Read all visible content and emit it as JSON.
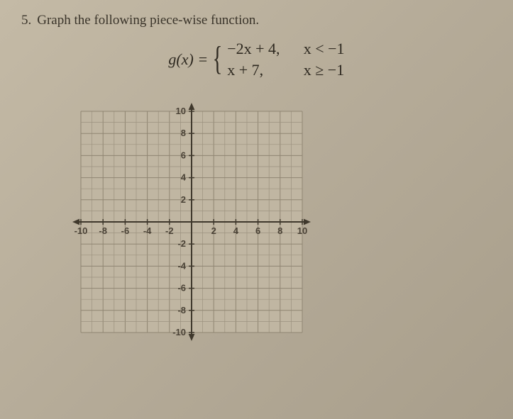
{
  "problem": {
    "number": "5.",
    "text": "Graph the following piece-wise function."
  },
  "equation": {
    "lhs": "g(x) =",
    "pieces": [
      {
        "expr": "−2x + 4,",
        "cond": "x < −1"
      },
      {
        "expr": "x + 7,",
        "cond": "x ≥ −1"
      }
    ]
  },
  "graph": {
    "xlim": [
      -10,
      10
    ],
    "ylim": [
      -10,
      10
    ],
    "tick_step": 2,
    "x_ticks": [
      -10,
      -8,
      -6,
      -4,
      -2,
      2,
      4,
      6,
      8,
      10
    ],
    "y_ticks": [
      -10,
      -8,
      -6,
      -4,
      -2,
      2,
      4,
      6,
      8,
      10
    ],
    "grid_step": 1,
    "grid_color": "#9c927f",
    "grid_major_color": "#8f8572",
    "axis_color": "#3f382c",
    "background_color": "#c0b6a2",
    "label_fontsize": 13,
    "label_color": "#4a4236",
    "arrowheads": true
  }
}
